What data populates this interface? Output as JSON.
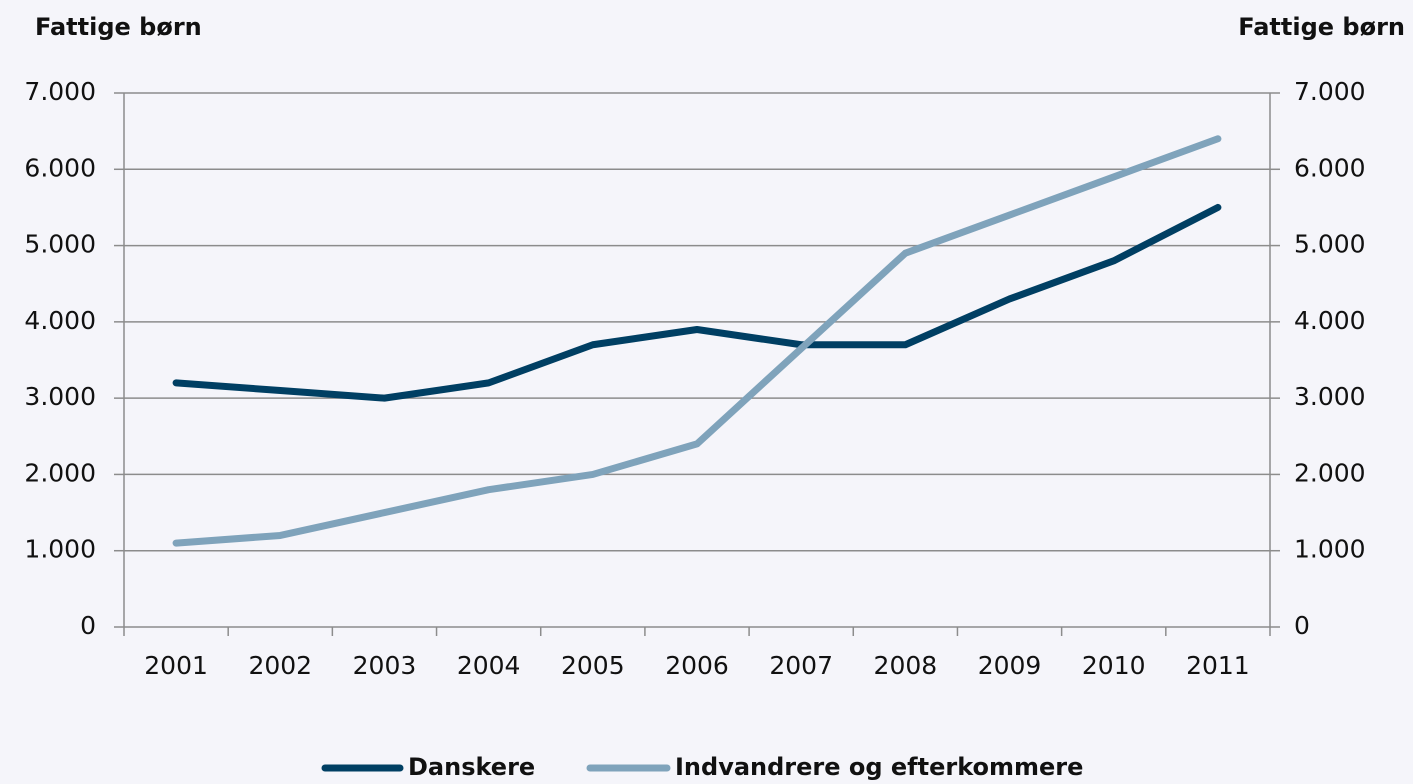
{
  "chart_data": {
    "type": "line",
    "y_label": "Fattige børn",
    "y2_label": "Fattige børn",
    "categories": [
      "2001",
      "2002",
      "2003",
      "2004",
      "2005",
      "2006",
      "2007",
      "2008",
      "2009",
      "2010",
      "2011"
    ],
    "series": [
      {
        "name": "Danskere",
        "color": "#003f63",
        "values": [
          3200,
          3100,
          3000,
          3200,
          3700,
          3900,
          3700,
          3700,
          4300,
          4800,
          5500
        ]
      },
      {
        "name": "Indvandrere og efterkommere",
        "color": "#7fa3bb",
        "values": [
          1100,
          1200,
          1500,
          1800,
          2000,
          2400,
          3650,
          4900,
          5400,
          5900,
          6400
        ]
      }
    ],
    "ylim": [
      0,
      7000
    ],
    "yticks": [
      0,
      {
        "value": 1000,
        "label": "1.000"
      },
      {
        "value": 2000,
        "label": "2.000"
      },
      {
        "value": 3000,
        "label": "3.000"
      },
      {
        "value": 4000,
        "label": "4.000"
      },
      {
        "value": 5000,
        "label": "5.000"
      },
      {
        "value": 6000,
        "label": "6.000"
      },
      {
        "value": 7000,
        "label": "7.000"
      }
    ],
    "y2lim": [
      0,
      7000
    ],
    "y2ticks": [
      0,
      {
        "value": 1000,
        "label": "1.000"
      },
      {
        "value": 2000,
        "label": "2.000"
      },
      {
        "value": 3000,
        "label": "3.000"
      },
      {
        "value": 4000,
        "label": "4.000"
      },
      {
        "value": 5000,
        "label": "5.000"
      },
      {
        "value": 6000,
        "label": "6.000"
      },
      {
        "value": 7000,
        "label": "7.000"
      }
    ],
    "grid": true,
    "legend": "bottom"
  }
}
